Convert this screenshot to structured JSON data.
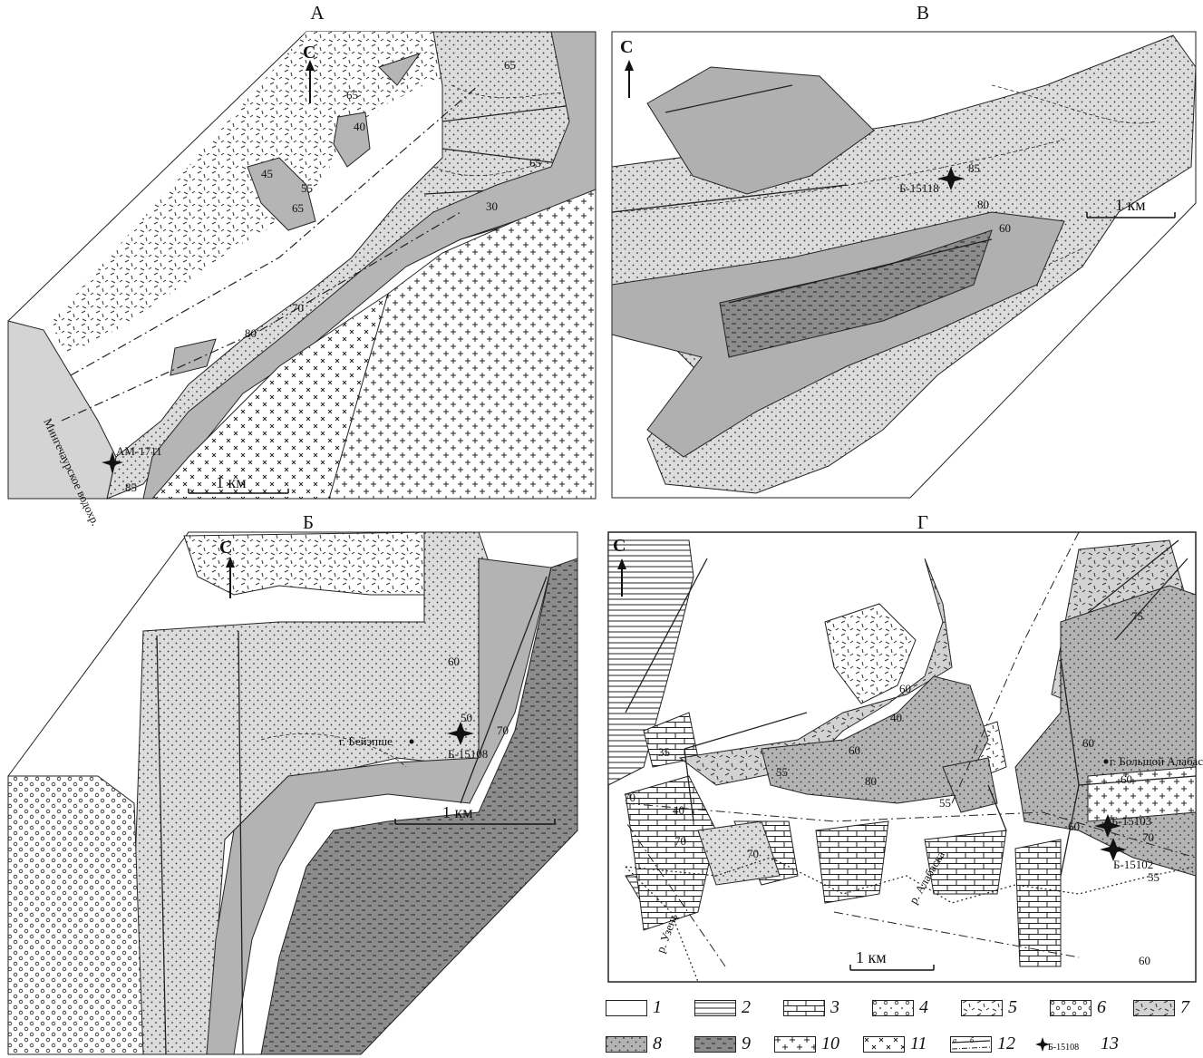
{
  "panels": {
    "A": {
      "title": "А",
      "north": "С",
      "scale": "1 км",
      "sample": "АМ-1711",
      "reservoir": "Мингечаурское водохр.",
      "dips": [
        "65",
        "65",
        "40",
        "45",
        "55",
        "65",
        "65",
        "30",
        "70",
        "80",
        "85"
      ]
    },
    "B": {
      "title": "В",
      "north": "С",
      "scale": "1 км",
      "sample": "Б-15118",
      "dips": [
        "85",
        "80",
        "60"
      ]
    },
    "V": {
      "title": "Б",
      "north": "С",
      "scale": "1 км",
      "sample": "Б-15108",
      "place": "г. Бейэпше",
      "dips": [
        "60",
        "50",
        "70"
      ]
    },
    "G": {
      "title": "Г",
      "north": "С",
      "scale": "1 км",
      "samples": [
        "Б-15103",
        "Б-15102"
      ],
      "place": "г. Большой Алабас",
      "river1": "р. Алабаска",
      "river2": "р. Узень",
      "dips": [
        "75",
        "60",
        "40",
        "35",
        "60",
        "55",
        "80",
        "60",
        "55",
        "60",
        "60",
        "70",
        "70",
        "40",
        "70",
        "70",
        "55",
        "60"
      ]
    }
  },
  "legend": {
    "items": [
      {
        "num": "1",
        "pattern": "blank"
      },
      {
        "num": "2",
        "pattern": "hlines"
      },
      {
        "num": "3",
        "pattern": "bricks"
      },
      {
        "num": "4",
        "pattern": "circles-dots"
      },
      {
        "num": "5",
        "pattern": "dashes"
      },
      {
        "num": "6",
        "pattern": "circles"
      },
      {
        "num": "7",
        "pattern": "grey-dashes"
      },
      {
        "num": "8",
        "pattern": "grey-dots"
      },
      {
        "num": "9",
        "pattern": "dark-dashes"
      },
      {
        "num": "10",
        "pattern": "crosses"
      },
      {
        "num": "11",
        "pattern": "small-crosses"
      },
      {
        "num": "12",
        "pattern": "lines"
      },
      {
        "num": "13",
        "pattern": "star"
      }
    ],
    "item12_a": "а",
    "item12_b": "б",
    "item13_sample": "Б-15108"
  },
  "colors": {
    "light": "#dcdcdc",
    "medium": "#b9b9b9",
    "dark": "#8e8e8e",
    "water": "#d4d4d4",
    "ink": "#111111"
  }
}
